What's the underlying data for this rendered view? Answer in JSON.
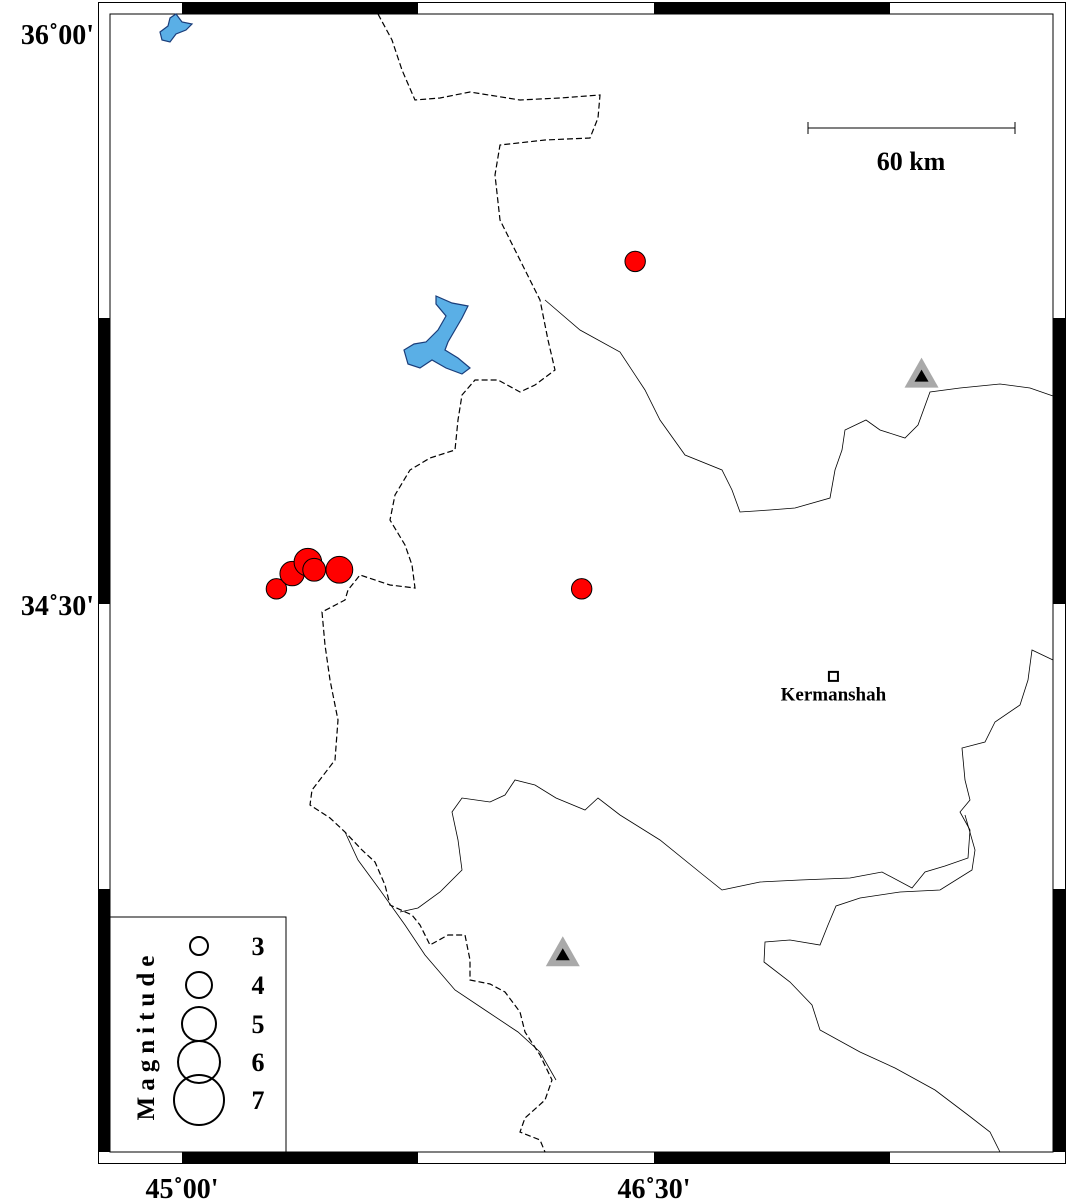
{
  "map": {
    "lon_range": [
      44.77,
      47.77
    ],
    "lat_range": [
      33.65,
      36.03
    ],
    "axis_labels": {
      "lon": [
        {
          "value": 45.0,
          "text": "45˚00'"
        },
        {
          "value": 46.5,
          "text": "46˚30'"
        }
      ],
      "lat": [
        {
          "value": 36.0,
          "text": "36˚00'"
        },
        {
          "value": 34.5,
          "text": "34˚30'"
        }
      ]
    },
    "scale_bar": {
      "label": "60 km"
    },
    "colors": {
      "event": "#ff0000",
      "water": "#5aafe6",
      "station": "#a9a9a9"
    },
    "events": [
      {
        "lon": 45.3,
        "lat": 34.54,
        "mag": 3.3
      },
      {
        "lon": 45.35,
        "lat": 34.58,
        "mag": 3.8
      },
      {
        "lon": 45.4,
        "lat": 34.61,
        "mag": 4.2
      },
      {
        "lon": 45.42,
        "lat": 34.59,
        "mag": 3.6
      },
      {
        "lon": 45.5,
        "lat": 34.59,
        "mag": 4.1
      },
      {
        "lon": 46.27,
        "lat": 34.54,
        "mag": 3.3
      },
      {
        "lon": 46.44,
        "lat": 35.4,
        "mag": 3.3
      }
    ],
    "stations": [
      {
        "lon": 47.35,
        "lat": 35.1
      },
      {
        "lon": 46.21,
        "lat": 33.58
      }
    ],
    "cities": [
      {
        "name": "Kermanshah",
        "lon": 47.07,
        "lat": 34.31
      }
    ],
    "legend": {
      "title": "Magnitude",
      "items": [
        {
          "mag": 3,
          "label": "3"
        },
        {
          "mag": 4,
          "label": "4"
        },
        {
          "mag": 5,
          "label": "5"
        },
        {
          "mag": 6,
          "label": "6"
        },
        {
          "mag": 7,
          "label": "7"
        }
      ]
    }
  }
}
